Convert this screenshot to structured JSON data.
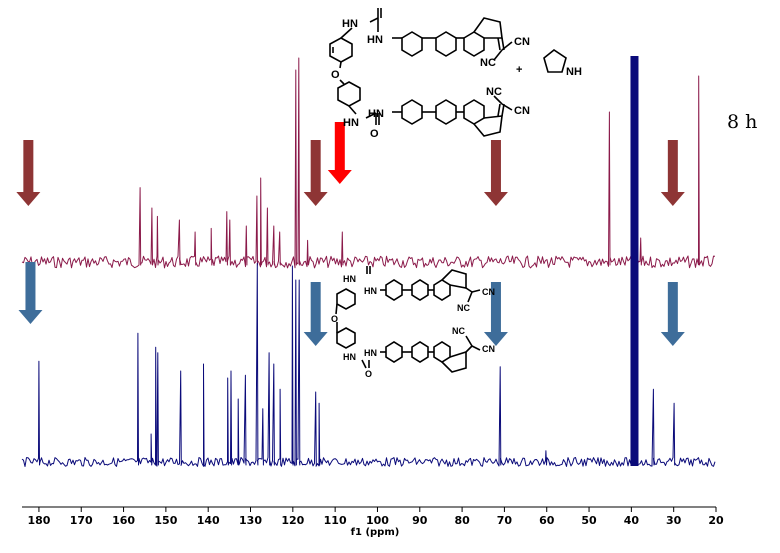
{
  "chart_data": {
    "type": "line",
    "title": "",
    "xlabel": "f1 (ppm)",
    "ylabel": "",
    "x_reversed": true,
    "xlim": [
      184,
      20
    ],
    "xticks": [
      180,
      170,
      160,
      150,
      140,
      130,
      120,
      110,
      100,
      90,
      80,
      70,
      60,
      50,
      40,
      30,
      20
    ],
    "xtick_labels": [
      "180",
      "170",
      "160",
      "150",
      "140",
      "130",
      "120",
      "110",
      "100",
      "90",
      "80",
      "70",
      "60",
      "50",
      "40",
      "30",
      "20"
    ],
    "grid": false,
    "legend": "none",
    "annotation": "8 h",
    "series": [
      {
        "color": "#8b1a4a",
        "peaks_ppm": [
          156.1,
          153.3,
          152.0,
          146.8,
          143.1,
          139.3,
          135.6,
          134.9,
          131.0,
          128.5,
          127.6,
          126.0,
          124.5,
          123.1,
          119.3,
          118.6,
          116.5,
          108.3,
          45.2,
          37.8,
          24.1
        ],
        "peak_heights": [
          0.62,
          0.45,
          0.38,
          0.35,
          0.25,
          0.28,
          0.42,
          0.35,
          0.3,
          0.55,
          0.7,
          0.45,
          0.3,
          0.25,
          1.6,
          1.7,
          0.18,
          0.25,
          1.25,
          0.2,
          1.55
        ]
      },
      {
        "color": "#0b0b7a",
        "peaks_ppm": [
          180.0,
          156.6,
          153.5,
          152.4,
          151.9,
          146.5,
          141.1,
          135.4,
          134.6,
          132.9,
          131.2,
          128.4,
          127.1,
          125.6,
          124.5,
          123.0,
          120.1,
          119.3,
          118.5,
          114.6,
          113.8,
          71.0,
          60.2,
          39.9,
          34.8,
          29.9
        ],
        "peak_heights": [
          0.72,
          0.92,
          0.2,
          0.82,
          0.78,
          0.65,
          0.7,
          0.6,
          0.65,
          0.45,
          0.62,
          1.42,
          0.38,
          0.78,
          0.7,
          0.52,
          1.4,
          1.3,
          1.3,
          0.5,
          0.42,
          0.68,
          0.08,
          2.8,
          0.52,
          0.42
        ],
        "solvent_peak_ppm": 39.5
      }
    ],
    "arrows": [
      {
        "series": 0,
        "ppm": [
          182.5,
          114.6,
          108.9,
          72.0,
          30.2
        ],
        "highlight_ppm": 108.9
      },
      {
        "series": 1,
        "ppm": [
          182.0,
          114.6,
          72.0,
          30.2
        ]
      }
    ]
  },
  "structure_labels": {
    "nh": "NH",
    "hn": "HN",
    "o": "O",
    "cn": "CN",
    "nc": "NC",
    "plus": "+",
    "pyrrolidine_nh": "NH"
  },
  "colors": {
    "top_spectrum": "#8b1a4a",
    "bottom_spectrum": "#0b0b7a",
    "top_arrow": "#8e3535",
    "bottom_arrow": "#3e6d9a",
    "highlight_arrow": "#ff0000"
  }
}
